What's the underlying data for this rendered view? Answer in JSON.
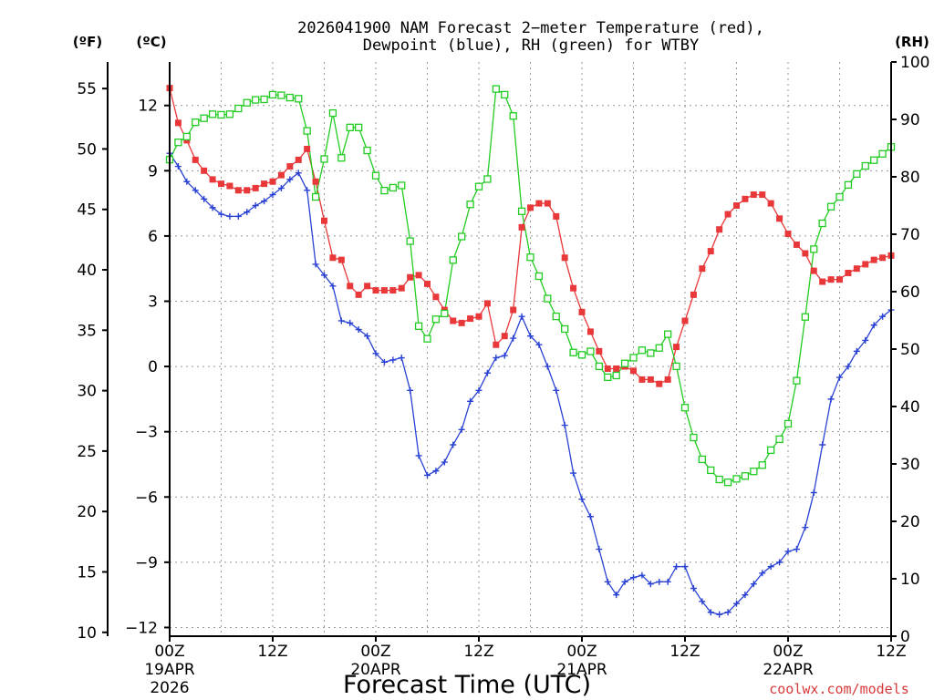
{
  "chart_data": {
    "type": "line",
    "title_line1": "2026041900 NAM Forecast 2−meter Temperature (red),",
    "title_line2": "Dewpoint (blue), RH (green) for WTBY",
    "xlabel": "Forecast Time (UTC)",
    "credit": "coolwx.com/models",
    "units": {
      "left_f": "(ºF)",
      "left_c": "(ºC)",
      "right": "(RH)"
    },
    "x_ticks": [
      {
        "hour": 0,
        "label": "00Z",
        "sub1": "19APR",
        "sub2": "2026"
      },
      {
        "hour": 12,
        "label": "12Z",
        "sub1": "",
        "sub2": ""
      },
      {
        "hour": 24,
        "label": "00Z",
        "sub1": "20APR",
        "sub2": ""
      },
      {
        "hour": 36,
        "label": "12Z",
        "sub1": "",
        "sub2": ""
      },
      {
        "hour": 48,
        "label": "00Z",
        "sub1": "21APR",
        "sub2": ""
      },
      {
        "hour": 60,
        "label": "12Z",
        "sub1": "",
        "sub2": ""
      },
      {
        "hour": 72,
        "label": "00Z",
        "sub1": "22APR",
        "sub2": ""
      },
      {
        "hour": 84,
        "label": "12Z",
        "sub1": "",
        "sub2": ""
      }
    ],
    "xlim": [
      0,
      84
    ],
    "celsius_ticks": [
      "12",
      "9",
      "6",
      "3",
      "0",
      "−3",
      "−6",
      "−9",
      "−12"
    ],
    "fahrenheit_ticks": [
      "55",
      "50",
      "45",
      "40",
      "35",
      "30",
      "25",
      "20",
      "15",
      "10"
    ],
    "rh_ticks": [
      "100",
      "90",
      "80",
      "70",
      "60",
      "50",
      "40",
      "30",
      "20",
      "10",
      "0"
    ],
    "ylim_c": [
      -12.4,
      14.0
    ],
    "ylim_rh": [
      0,
      100
    ],
    "colors": {
      "temperature": "#e8383a",
      "dewpoint": "#2a42d4",
      "rh": "#22cc22"
    },
    "series": [
      {
        "name": "Temperature (red)",
        "axis": "c",
        "values": [
          12.8,
          11.2,
          10.4,
          9.5,
          9.0,
          8.6,
          8.4,
          8.3,
          8.1,
          8.1,
          8.2,
          8.4,
          8.5,
          8.8,
          9.2,
          9.5,
          10.0,
          8.5,
          6.7,
          5.0,
          4.9,
          3.7,
          3.3,
          3.7,
          3.5,
          3.5,
          3.5,
          3.6,
          4.1,
          4.2,
          3.8,
          3.2,
          2.6,
          2.1,
          2.0,
          2.2,
          2.3,
          2.9,
          1.0,
          1.4,
          2.6,
          6.4,
          7.3,
          7.5,
          7.5,
          6.9,
          5.0,
          3.6,
          2.5,
          1.6,
          0.7,
          -0.1,
          -0.1,
          -0.0,
          -0.2,
          -0.6,
          -0.6,
          -0.8,
          -0.6,
          0.9,
          2.1,
          3.3,
          4.5,
          5.3,
          6.3,
          7.0,
          7.4,
          7.7,
          7.9,
          7.9,
          7.5,
          6.8,
          6.1,
          5.6,
          5.2,
          4.4,
          3.9,
          4.0,
          4.0,
          4.3,
          4.5,
          4.7,
          4.9,
          5.0,
          5.1
        ]
      },
      {
        "name": "Dewpoint (blue)",
        "axis": "c",
        "values": [
          9.8,
          9.2,
          8.5,
          8.1,
          7.7,
          7.3,
          7.0,
          6.9,
          6.9,
          7.1,
          7.4,
          7.6,
          7.9,
          8.2,
          8.6,
          8.9,
          8.1,
          4.7,
          4.2,
          3.7,
          2.1,
          2.0,
          1.7,
          1.4,
          0.6,
          0.2,
          0.3,
          0.4,
          -1.1,
          -4.1,
          -5.0,
          -4.8,
          -4.4,
          -3.6,
          -2.9,
          -1.6,
          -1.1,
          -0.3,
          0.4,
          0.5,
          1.3,
          2.3,
          1.4,
          1.0,
          0.0,
          -1.1,
          -2.7,
          -4.9,
          -6.1,
          -6.9,
          -8.4,
          -9.9,
          -10.5,
          -9.9,
          -9.7,
          -9.6,
          -10.0,
          -9.9,
          -9.9,
          -9.2,
          -9.2,
          -10.2,
          -10.8,
          -11.3,
          -11.4,
          -11.3,
          -10.9,
          -10.5,
          -10.0,
          -9.5,
          -9.2,
          -9.0,
          -8.5,
          -8.4,
          -7.4,
          -5.8,
          -3.6,
          -1.5,
          -0.5,
          0.0,
          0.7,
          1.2,
          1.9,
          2.3,
          2.6
        ]
      },
      {
        "name": "RH (green)",
        "axis": "rh",
        "values": [
          83.0,
          86.0,
          87.0,
          89.5,
          90.2,
          90.9,
          90.8,
          90.9,
          91.9,
          92.9,
          93.4,
          93.5,
          94.3,
          94.2,
          93.8,
          93.6,
          88.0,
          76.5,
          83.1,
          91.1,
          83.3,
          88.6,
          88.6,
          84.6,
          80.2,
          77.6,
          78.1,
          78.5,
          68.8,
          54.0,
          51.8,
          55.2,
          56.2,
          65.5,
          69.6,
          75.2,
          78.3,
          79.6,
          95.3,
          94.3,
          90.6,
          74.0,
          66.0,
          62.7,
          58.8,
          55.7,
          53.5,
          49.4,
          49.0,
          49.6,
          47.0,
          45.1,
          45.4,
          47.5,
          48.5,
          49.8,
          49.3,
          50.2,
          52.6,
          47.0,
          39.8,
          34.6,
          30.8,
          28.9,
          27.3,
          26.8,
          27.4,
          27.9,
          28.7,
          29.8,
          32.4,
          34.3,
          37.0,
          44.5,
          55.6,
          67.4,
          71.9,
          74.8,
          76.5,
          78.6,
          80.5,
          81.9,
          82.9,
          84.0,
          85.2
        ]
      }
    ]
  }
}
